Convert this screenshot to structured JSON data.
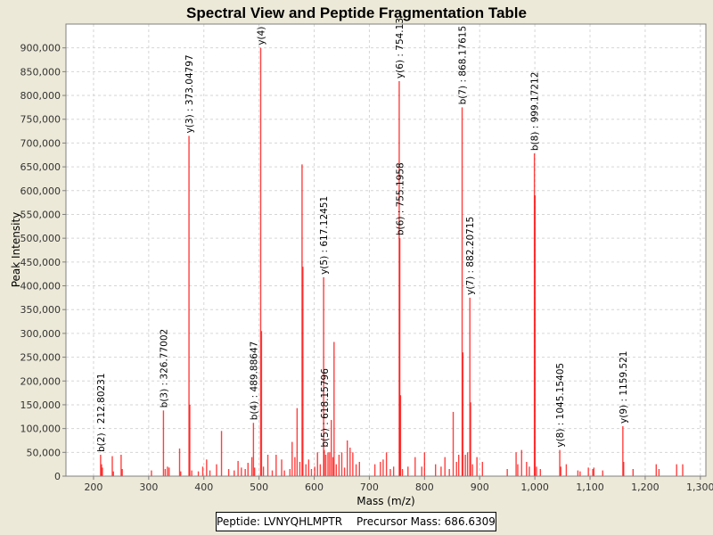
{
  "chart_data": {
    "type": "bar",
    "title": "Spectral View and Peptide Fragmentation Table",
    "xlabel": "Mass (m/z)",
    "ylabel": "Peak Intensity",
    "xlim": [
      150,
      1310
    ],
    "ylim": [
      0,
      950000
    ],
    "xticks": [
      200,
      300,
      400,
      500,
      600,
      700,
      800,
      900,
      1000,
      1100,
      1200,
      1300
    ],
    "xtick_labels": [
      "200",
      "300",
      "400",
      "500",
      "600",
      "700",
      "800",
      "900",
      "1,000",
      "1,100",
      "1,200",
      "1,300"
    ],
    "yticks": [
      0,
      50000,
      100000,
      150000,
      200000,
      250000,
      300000,
      350000,
      400000,
      450000,
      500000,
      550000,
      600000,
      650000,
      700000,
      750000,
      800000,
      850000,
      900000
    ],
    "ytick_labels": [
      "0",
      "50,000",
      "100,000",
      "150,000",
      "200,000",
      "250,000",
      "300,000",
      "350,000",
      "400,000",
      "450,000",
      "500,000",
      "550,000",
      "600,000",
      "650,000",
      "700,000",
      "750,000",
      "800,000",
      "850,000",
      "900,000"
    ],
    "grid": true,
    "peak_color": "#ff0000",
    "peaks": [
      {
        "mz": 212.8,
        "intensity": 45000
      },
      {
        "mz": 214.5,
        "intensity": 25000
      },
      {
        "mz": 216,
        "intensity": 18000
      },
      {
        "mz": 234,
        "intensity": 42000
      },
      {
        "mz": 236,
        "intensity": 10000
      },
      {
        "mz": 250,
        "intensity": 45000
      },
      {
        "mz": 252,
        "intensity": 15000
      },
      {
        "mz": 305,
        "intensity": 12000
      },
      {
        "mz": 326.77,
        "intensity": 138000
      },
      {
        "mz": 330,
        "intensity": 15000
      },
      {
        "mz": 334,
        "intensity": 20000
      },
      {
        "mz": 337,
        "intensity": 18000
      },
      {
        "mz": 356,
        "intensity": 58000
      },
      {
        "mz": 358,
        "intensity": 10000
      },
      {
        "mz": 373.05,
        "intensity": 715000
      },
      {
        "mz": 374.5,
        "intensity": 150000
      },
      {
        "mz": 378,
        "intensity": 12000
      },
      {
        "mz": 390,
        "intensity": 10000
      },
      {
        "mz": 398,
        "intensity": 20000
      },
      {
        "mz": 405,
        "intensity": 35000
      },
      {
        "mz": 411,
        "intensity": 12000
      },
      {
        "mz": 423,
        "intensity": 25000
      },
      {
        "mz": 432,
        "intensity": 95000
      },
      {
        "mz": 445,
        "intensity": 15000
      },
      {
        "mz": 455,
        "intensity": 12000
      },
      {
        "mz": 462,
        "intensity": 32000
      },
      {
        "mz": 468,
        "intensity": 18000
      },
      {
        "mz": 475,
        "intensity": 15000
      },
      {
        "mz": 480,
        "intensity": 28000
      },
      {
        "mz": 487,
        "intensity": 40000
      },
      {
        "mz": 489.89,
        "intensity": 112000
      },
      {
        "mz": 492,
        "intensity": 18000
      },
      {
        "mz": 503,
        "intensity": 900000
      },
      {
        "mz": 504.5,
        "intensity": 305000
      },
      {
        "mz": 508,
        "intensity": 20000
      },
      {
        "mz": 516,
        "intensity": 45000
      },
      {
        "mz": 524,
        "intensity": 12000
      },
      {
        "mz": 531,
        "intensity": 45000
      },
      {
        "mz": 541,
        "intensity": 35000
      },
      {
        "mz": 546,
        "intensity": 12000
      },
      {
        "mz": 556,
        "intensity": 15000
      },
      {
        "mz": 560,
        "intensity": 72000
      },
      {
        "mz": 565,
        "intensity": 40000
      },
      {
        "mz": 569,
        "intensity": 143000
      },
      {
        "mz": 574,
        "intensity": 30000
      },
      {
        "mz": 578,
        "intensity": 655000
      },
      {
        "mz": 579.5,
        "intensity": 440000
      },
      {
        "mz": 585,
        "intensity": 25000
      },
      {
        "mz": 590,
        "intensity": 35000
      },
      {
        "mz": 595,
        "intensity": 15000
      },
      {
        "mz": 601,
        "intensity": 20000
      },
      {
        "mz": 606,
        "intensity": 50000
      },
      {
        "mz": 611,
        "intensity": 25000
      },
      {
        "mz": 617.12,
        "intensity": 418000
      },
      {
        "mz": 618.16,
        "intensity": 55000
      },
      {
        "mz": 621,
        "intensity": 45000
      },
      {
        "mz": 625,
        "intensity": 50000
      },
      {
        "mz": 628,
        "intensity": 50000
      },
      {
        "mz": 631,
        "intensity": 118000
      },
      {
        "mz": 634,
        "intensity": 40000
      },
      {
        "mz": 636,
        "intensity": 282000
      },
      {
        "mz": 640,
        "intensity": 25000
      },
      {
        "mz": 645,
        "intensity": 45000
      },
      {
        "mz": 650,
        "intensity": 50000
      },
      {
        "mz": 655,
        "intensity": 18000
      },
      {
        "mz": 660,
        "intensity": 75000
      },
      {
        "mz": 665,
        "intensity": 60000
      },
      {
        "mz": 670,
        "intensity": 50000
      },
      {
        "mz": 676,
        "intensity": 25000
      },
      {
        "mz": 682,
        "intensity": 30000
      },
      {
        "mz": 710,
        "intensity": 25000
      },
      {
        "mz": 720,
        "intensity": 30000
      },
      {
        "mz": 725,
        "intensity": 35000
      },
      {
        "mz": 731,
        "intensity": 50000
      },
      {
        "mz": 738,
        "intensity": 15000
      },
      {
        "mz": 744,
        "intensity": 20000
      },
      {
        "mz": 754.13,
        "intensity": 830000
      },
      {
        "mz": 755.2,
        "intensity": 500000
      },
      {
        "mz": 756.5,
        "intensity": 170000
      },
      {
        "mz": 760,
        "intensity": 15000
      },
      {
        "mz": 770,
        "intensity": 20000
      },
      {
        "mz": 783,
        "intensity": 40000
      },
      {
        "mz": 795,
        "intensity": 20000
      },
      {
        "mz": 800,
        "intensity": 50000
      },
      {
        "mz": 820,
        "intensity": 25000
      },
      {
        "mz": 830,
        "intensity": 20000
      },
      {
        "mz": 837,
        "intensity": 40000
      },
      {
        "mz": 845,
        "intensity": 15000
      },
      {
        "mz": 852,
        "intensity": 135000
      },
      {
        "mz": 858,
        "intensity": 30000
      },
      {
        "mz": 862,
        "intensity": 45000
      },
      {
        "mz": 868.18,
        "intensity": 775000
      },
      {
        "mz": 869.5,
        "intensity": 260000
      },
      {
        "mz": 874,
        "intensity": 45000
      },
      {
        "mz": 878,
        "intensity": 50000
      },
      {
        "mz": 882.21,
        "intensity": 375000
      },
      {
        "mz": 883.5,
        "intensity": 155000
      },
      {
        "mz": 887,
        "intensity": 25000
      },
      {
        "mz": 895,
        "intensity": 40000
      },
      {
        "mz": 905,
        "intensity": 30000
      },
      {
        "mz": 950,
        "intensity": 15000
      },
      {
        "mz": 966,
        "intensity": 50000
      },
      {
        "mz": 969,
        "intensity": 25000
      },
      {
        "mz": 976,
        "intensity": 55000
      },
      {
        "mz": 985,
        "intensity": 30000
      },
      {
        "mz": 990,
        "intensity": 20000
      },
      {
        "mz": 999.17,
        "intensity": 678000
      },
      {
        "mz": 1000.3,
        "intensity": 590000
      },
      {
        "mz": 1003,
        "intensity": 20000
      },
      {
        "mz": 1010,
        "intensity": 15000
      },
      {
        "mz": 1045.15,
        "intensity": 55000
      },
      {
        "mz": 1047,
        "intensity": 20000
      },
      {
        "mz": 1057,
        "intensity": 25000
      },
      {
        "mz": 1078,
        "intensity": 12000
      },
      {
        "mz": 1082,
        "intensity": 10000
      },
      {
        "mz": 1097,
        "intensity": 18000
      },
      {
        "mz": 1105,
        "intensity": 15000
      },
      {
        "mz": 1107,
        "intensity": 18000
      },
      {
        "mz": 1123,
        "intensity": 12000
      },
      {
        "mz": 1159.52,
        "intensity": 105000
      },
      {
        "mz": 1161,
        "intensity": 30000
      },
      {
        "mz": 1178,
        "intensity": 15000
      },
      {
        "mz": 1220,
        "intensity": 25000
      },
      {
        "mz": 1225,
        "intensity": 15000
      },
      {
        "mz": 1257,
        "intensity": 25000
      },
      {
        "mz": 1268,
        "intensity": 25000
      }
    ],
    "annotations": [
      {
        "label": "b(2) : 212.80231",
        "mz": 212.8,
        "intensity": 45000
      },
      {
        "label": "b(3) : 326.77002",
        "mz": 326.77,
        "intensity": 138000
      },
      {
        "label": "y(3) : 373.04797",
        "mz": 373.05,
        "intensity": 715000
      },
      {
        "label": "b(4) : 489.88647",
        "mz": 489.89,
        "intensity": 112000
      },
      {
        "label": "y(4)",
        "mz": 503,
        "intensity": 900000
      },
      {
        "label": "y(5) : 617.12451",
        "mz": 617.12,
        "intensity": 418000
      },
      {
        "label": "b(5) : 618.15796",
        "mz": 618.16,
        "intensity": 55000
      },
      {
        "label": "y(6) : 754.13",
        "mz": 754.13,
        "intensity": 830000
      },
      {
        "label": "b(6) : 755.1958",
        "mz": 755.2,
        "intensity": 500000
      },
      {
        "label": "b(7) : 868.17615",
        "mz": 868.18,
        "intensity": 775000
      },
      {
        "label": "y(7) : 882.20715",
        "mz": 882.21,
        "intensity": 375000
      },
      {
        "label": "b(8) : 999.17212",
        "mz": 999.17,
        "intensity": 678000
      },
      {
        "label": "y(8) : 1045.15405",
        "mz": 1045.15,
        "intensity": 55000
      },
      {
        "label": "y(9) : 1159.521",
        "mz": 1159.52,
        "intensity": 105000
      }
    ]
  },
  "legend": {
    "peptide": "Peptide: LVNYQHLMPTR",
    "precursor": "Precursor Mass: 686.6309"
  }
}
